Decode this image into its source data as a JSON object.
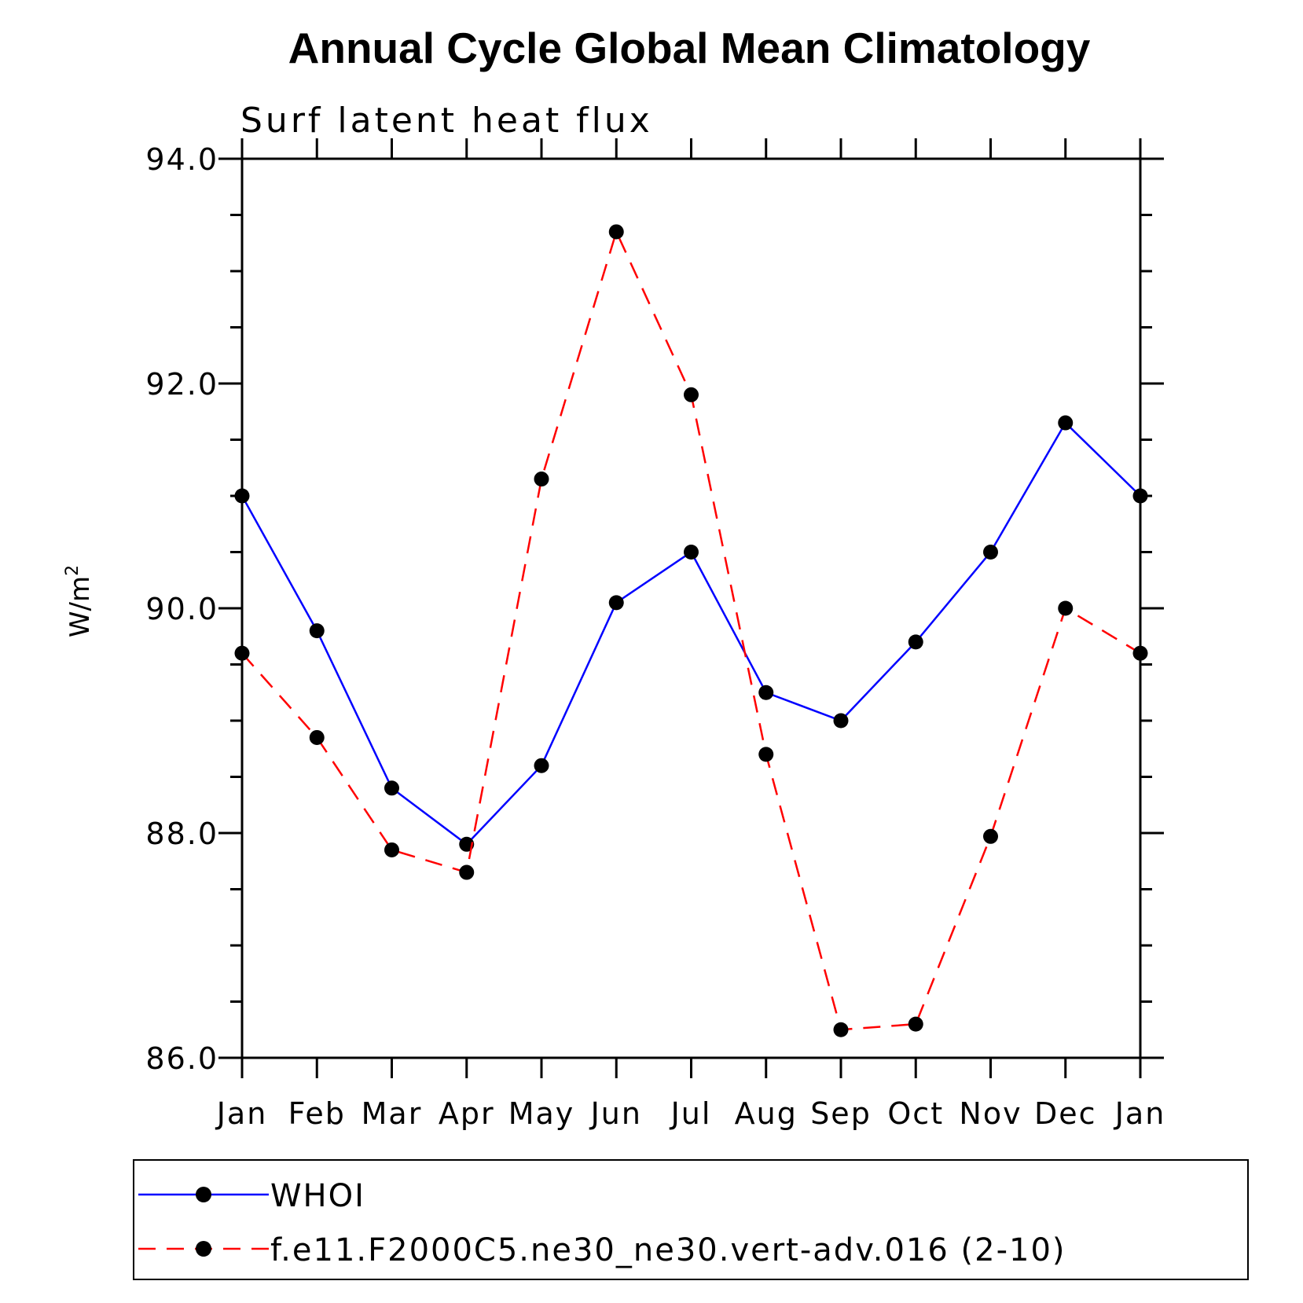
{
  "chart_data": {
    "type": "line",
    "title": "Annual Cycle Global Mean Climatology",
    "subtitle": "Surf latent heat flux",
    "ylabel": "W/m",
    "ylabel_sup": "2",
    "xlabel": "",
    "categories": [
      "Jan",
      "Feb",
      "Mar",
      "Apr",
      "May",
      "Jun",
      "Jul",
      "Aug",
      "Sep",
      "Oct",
      "Nov",
      "Dec",
      "Jan"
    ],
    "ylim": [
      86.0,
      94.0
    ],
    "yticks": [
      "86.0",
      "88.0",
      "90.0",
      "92.0",
      "94.0"
    ],
    "grid": false,
    "legend_position": "bottom",
    "series": [
      {
        "name": "WHOI",
        "color": "#0000ff",
        "dash": "solid",
        "values": [
          91.0,
          89.8,
          88.4,
          87.9,
          88.6,
          90.05,
          90.5,
          89.25,
          89.0,
          89.7,
          90.5,
          91.65,
          91.0
        ]
      },
      {
        "name": "f.e11.F2000C5.ne30_ne30.vert-adv.016 (2-10)",
        "color": "#ff0000",
        "dash": "dashed",
        "values": [
          89.6,
          88.85,
          87.85,
          87.65,
          91.15,
          93.35,
          91.9,
          88.7,
          86.25,
          86.3,
          87.97,
          90.0,
          89.6
        ]
      }
    ]
  }
}
